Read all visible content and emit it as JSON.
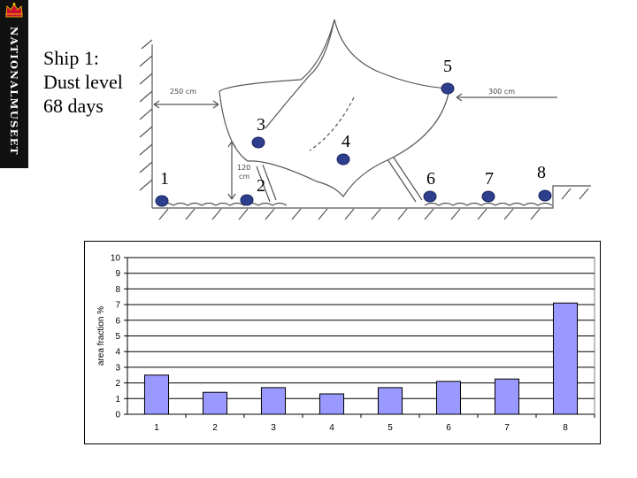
{
  "sidebar": {
    "brand_text": "NATIONALMUSEET",
    "logo_icon": "crown-icon",
    "bg_color": "#111111",
    "logo_color": "#c8102e"
  },
  "slide": {
    "title_lines": [
      "Ship 1:",
      "Dust level",
      "68 days"
    ]
  },
  "diagram": {
    "dimensions": {
      "left_distance": "250 cm",
      "right_distance": "300 cm",
      "height": [
        "120",
        "cm"
      ]
    },
    "markers": [
      "1",
      "2",
      "3",
      "4",
      "5",
      "6",
      "7",
      "8"
    ],
    "marker_color": "#2c3e8c"
  },
  "chart_data": {
    "type": "bar",
    "categories": [
      "1",
      "2",
      "3",
      "4",
      "5",
      "6",
      "7",
      "8"
    ],
    "values": [
      2.5,
      1.4,
      1.7,
      1.3,
      1.7,
      2.1,
      2.25,
      7.1
    ],
    "title": "",
    "xlabel": "",
    "ylabel": "area fraction %",
    "ylim": [
      0,
      10
    ],
    "yticks": [
      0,
      1,
      2,
      3,
      4,
      5,
      6,
      7,
      8,
      9,
      10
    ],
    "grid": true,
    "legend": "none",
    "bar_color": "#9999ff",
    "plot_bg": "#ffffff"
  }
}
